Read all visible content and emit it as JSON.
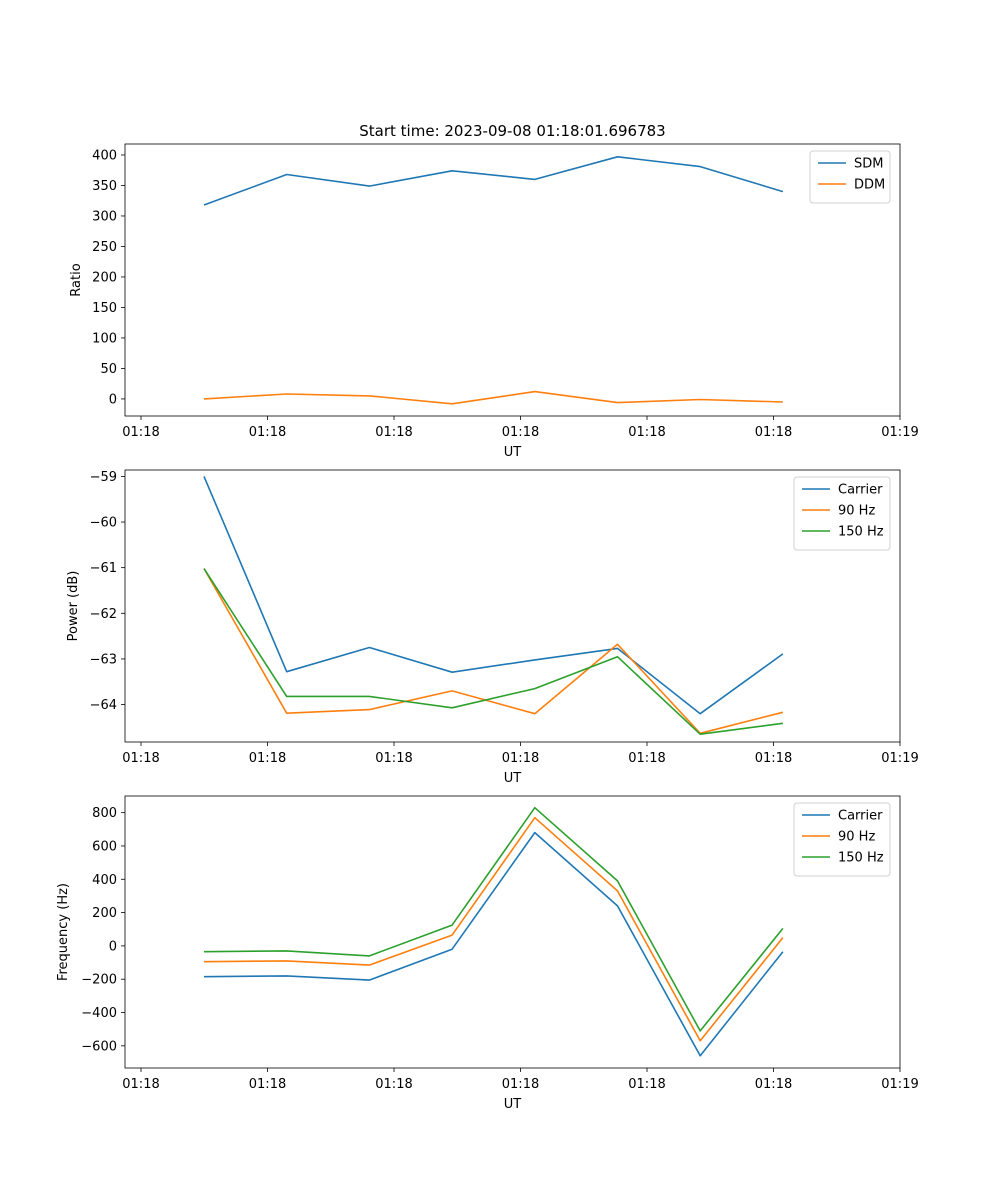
{
  "figure": {
    "title": "Start time: 2023-09-08 01:18:01.696783"
  },
  "chart_data": [
    {
      "type": "line",
      "name": "ratio",
      "ylabel": "Ratio",
      "xlabel": "UT",
      "xlim": [
        -0.8,
        8.2
      ],
      "x_ticks": [
        0,
        1.5,
        3,
        4.5,
        6,
        7.5,
        9
      ],
      "x_tick_values": [
        -0.8,
        0.7,
        2.2,
        3.7,
        5.2,
        6.7,
        8.2
      ],
      "x_tick_labels": [
        "01:18",
        "01:18",
        "01:18",
        "01:18",
        "01:18",
        "01:18",
        "01:19"
      ],
      "ylim": [
        -28,
        418
      ],
      "y_ticks": [
        0,
        50,
        100,
        150,
        200,
        250,
        300,
        350,
        400
      ],
      "y_tick_labels": [
        "0",
        "50",
        "100",
        "150",
        "200",
        "250",
        "300",
        "350",
        "400"
      ],
      "legend_position": "top-right",
      "x": [
        0,
        1,
        2,
        3,
        4,
        5,
        6,
        7
      ],
      "series": [
        {
          "name": "SDM",
          "color": "#1f77b4",
          "values": [
            318,
            368,
            349,
            374,
            360,
            397,
            381,
            340
          ]
        },
        {
          "name": "DDM",
          "color": "#ff7f0e",
          "values": [
            0,
            8,
            5,
            -8,
            12,
            -6,
            -1,
            -5
          ]
        }
      ]
    },
    {
      "type": "line",
      "name": "power",
      "ylabel": "Power (dB)",
      "xlabel": "UT",
      "xlim": [
        -0.8,
        8.2
      ],
      "x_tick_values": [
        -0.8,
        0.7,
        2.2,
        3.7,
        5.2,
        6.7,
        8.2
      ],
      "x_tick_labels": [
        "01:18",
        "01:18",
        "01:18",
        "01:18",
        "01:18",
        "01:18",
        "01:19"
      ],
      "ylim": [
        -64.82,
        -58.86
      ],
      "y_ticks": [
        -64,
        -63,
        -62,
        -61,
        -60,
        -59
      ],
      "y_tick_labels": [
        "−64",
        "−63",
        "−62",
        "−61",
        "−60",
        "−59"
      ],
      "legend_position": "top-right",
      "x": [
        0,
        1,
        2,
        3,
        4,
        5,
        6,
        7
      ],
      "series": [
        {
          "name": "Carrier",
          "color": "#1f77b4",
          "values": [
            -59.0,
            -63.28,
            -62.75,
            -63.29,
            -63.02,
            -62.77,
            -64.2,
            -62.89
          ]
        },
        {
          "name": "90 Hz",
          "color": "#ff7f0e",
          "values": [
            -61.02,
            -64.19,
            -64.11,
            -63.7,
            -64.2,
            -62.68,
            -64.63,
            -64.17
          ]
        },
        {
          "name": "150 Hz",
          "color": "#2ca02c",
          "values": [
            -61.02,
            -63.82,
            -63.82,
            -64.07,
            -63.65,
            -62.95,
            -64.65,
            -64.41
          ]
        }
      ]
    },
    {
      "type": "line",
      "name": "frequency",
      "ylabel": "Frequency (Hz)",
      "xlabel": "UT",
      "xlim": [
        -0.8,
        8.2
      ],
      "x_tick_values": [
        -0.8,
        0.7,
        2.2,
        3.7,
        5.2,
        6.7,
        8.2
      ],
      "x_tick_labels": [
        "01:18",
        "01:18",
        "01:18",
        "01:18",
        "01:18",
        "01:18",
        "01:19"
      ],
      "ylim": [
        -733,
        900
      ],
      "y_ticks": [
        -600,
        -400,
        -200,
        0,
        200,
        400,
        600,
        800
      ],
      "y_tick_labels": [
        "−600",
        "−400",
        "−200",
        "0",
        "200",
        "400",
        "600",
        "800"
      ],
      "legend_position": "top-right",
      "x": [
        0,
        1,
        2,
        3,
        4,
        5,
        6,
        7
      ],
      "series": [
        {
          "name": "Carrier",
          "color": "#1f77b4",
          "values": [
            -185,
            -180,
            -205,
            -20,
            680,
            240,
            -660,
            -35
          ]
        },
        {
          "name": "90 Hz",
          "color": "#ff7f0e",
          "values": [
            -95,
            -90,
            -115,
            65,
            770,
            330,
            -570,
            50
          ]
        },
        {
          "name": "150 Hz",
          "color": "#2ca02c",
          "values": [
            -35,
            -30,
            -60,
            125,
            830,
            390,
            -510,
            105
          ]
        }
      ]
    }
  ]
}
